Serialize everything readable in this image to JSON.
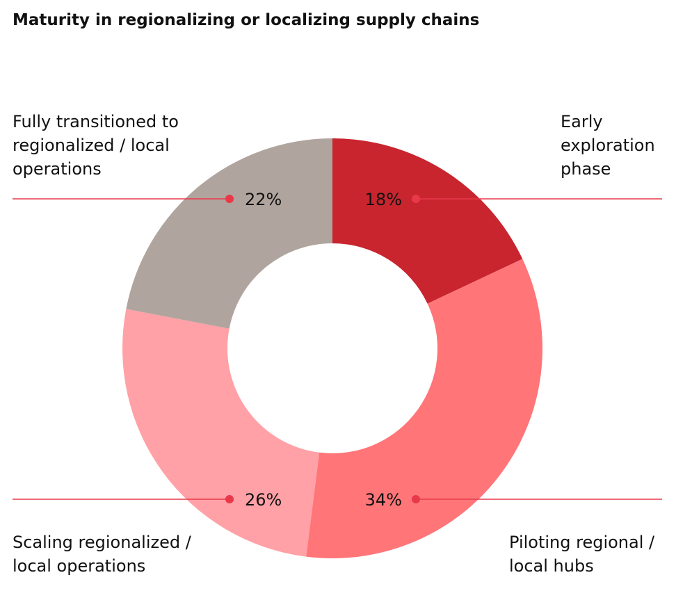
{
  "chart_data": {
    "type": "donut",
    "title": "Maturity in regionalizing or localizing supply chains",
    "categories": [
      "Early exploration phase",
      "Piloting regional / local hubs",
      "Scaling regionalized / local operations",
      "Fully transitioned to regionalized / local operations"
    ],
    "values": [
      18,
      34,
      26,
      22
    ],
    "value_labels": [
      "18%",
      "34%",
      "26%",
      "22%"
    ],
    "colors": [
      "#c8252f",
      "#ff7578",
      "#ffa1a6",
      "#b0a49e"
    ],
    "leader_color": "#e8394a"
  }
}
